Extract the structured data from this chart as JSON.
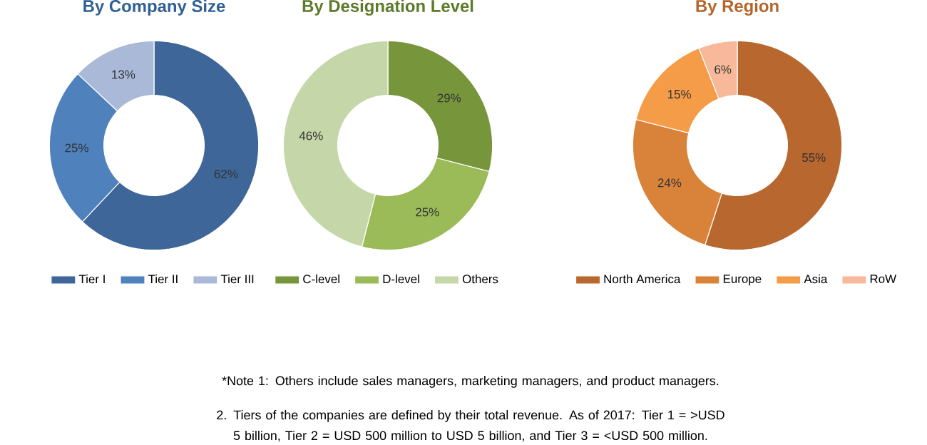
{
  "chart_data": [
    {
      "type": "donut",
      "title": "By Company Size",
      "categories": [
        "Tier I",
        "Tier II",
        "Tier III"
      ],
      "values": [
        62,
        25,
        13
      ],
      "value_labels": [
        "62%",
        "25%",
        "13%"
      ],
      "colors": [
        "#3e6699",
        "#4f81bd",
        "#aab9d8"
      ],
      "legend": "bottom"
    },
    {
      "type": "donut",
      "title": "By Designation Level",
      "categories": [
        "C-level",
        "D-level",
        "Others"
      ],
      "values": [
        29,
        25,
        46
      ],
      "value_labels": [
        "29%",
        "25%",
        "46%"
      ],
      "colors": [
        "#77963c",
        "#9bbb59",
        "#c5d7a8"
      ],
      "legend": "bottom"
    },
    {
      "type": "donut",
      "title": "By Region",
      "categories": [
        "North America",
        "Europe",
        "Asia",
        "RoW"
      ],
      "values": [
        55,
        24,
        15,
        6
      ],
      "value_labels": [
        "55%",
        "24%",
        "15%",
        "6%"
      ],
      "colors": [
        "#b8672e",
        "#d9833a",
        "#f59c48",
        "#f8b99a"
      ],
      "legend": "bottom"
    },
    {
      "type": "other",
      "annotations": [
        "*Note 1: Others include sales managers, marketing managers, and product managers.",
        "2. Tiers of the companies are defined by their total revenue. As of 2017: Tier 1 = >USD 5 billion, Tier 2 = USD 500 million to USD 5 billion, and Tier 3 = <USD 500 million."
      ]
    }
  ]
}
